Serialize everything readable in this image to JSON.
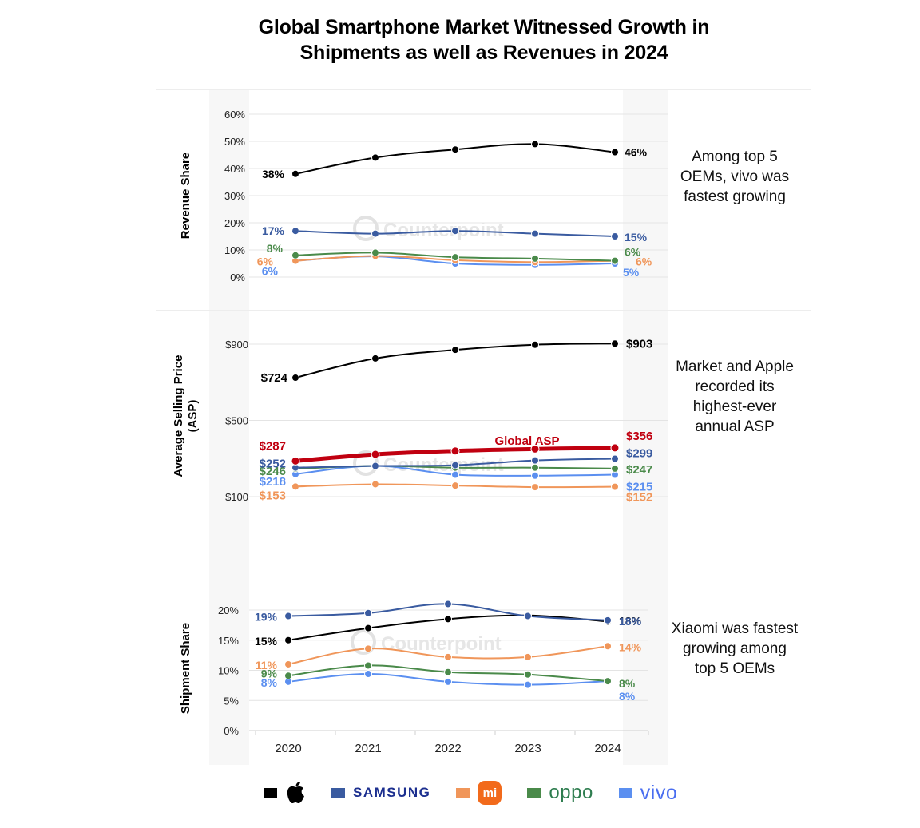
{
  "title_line1": "Global Smartphone Market Witnessed Growth in",
  "title_line2": "Shipments as well as Revenues in 2024",
  "watermark": "Counterpoint",
  "colors": {
    "apple": "#000000",
    "samsung": "#3a5ba0",
    "xiaomi": "#f0965a",
    "oppo": "#4a8a4a",
    "vivo": "#5b8ff0",
    "global": "#c00010"
  },
  "legend": [
    {
      "key": "apple",
      "label": "Apple"
    },
    {
      "key": "samsung",
      "label": "SAMSUNG"
    },
    {
      "key": "xiaomi",
      "label": "mi"
    },
    {
      "key": "oppo",
      "label": "oppo"
    },
    {
      "key": "vivo",
      "label": "vivo"
    }
  ],
  "notes": {
    "revenue": "Among top 5 OEMs, vivo was fastest growing",
    "asp": "Market and Apple recorded its highest-ever annual ASP",
    "shipment": "Xiaomi was fastest growing among top 5 OEMs"
  },
  "chart_data": [
    {
      "type": "line",
      "id": "revenue",
      "ylabel": "Revenue Share",
      "x": [
        "2020",
        "2021",
        "2022",
        "2023",
        "2024"
      ],
      "ylim": [
        0,
        60
      ],
      "yticks": [
        "0%",
        "10%",
        "20%",
        "30%",
        "40%",
        "50%",
        "60%"
      ],
      "ytick_values": [
        0,
        10,
        20,
        30,
        40,
        50,
        60
      ],
      "grid": true,
      "series": [
        {
          "name": "Apple",
          "key": "apple",
          "values": [
            38,
            44,
            47,
            49,
            46
          ],
          "start_label": "38%",
          "end_label": "46%"
        },
        {
          "name": "Samsung",
          "key": "samsung",
          "values": [
            17,
            16,
            17,
            16,
            15
          ],
          "start_label": "17%",
          "end_label": "15%"
        },
        {
          "name": "OPPO",
          "key": "oppo",
          "values": [
            8,
            9,
            7.3,
            6.8,
            6
          ],
          "start_label": "8%",
          "end_label": "6%"
        },
        {
          "name": "Xiaomi",
          "key": "xiaomi",
          "values": [
            6,
            7.8,
            6.2,
            5.5,
            6
          ],
          "start_label": "6%",
          "end_label": "6%"
        },
        {
          "name": "vivo",
          "key": "vivo",
          "values": [
            6,
            7.6,
            5,
            4.5,
            5
          ],
          "start_label": "6%",
          "end_label": "5%"
        }
      ]
    },
    {
      "type": "line",
      "id": "asp",
      "ylabel": "Average Selling Price (ASP)",
      "x": [
        "2020",
        "2021",
        "2022",
        "2023",
        "2024"
      ],
      "ylim": [
        100,
        900
      ],
      "yticks": [
        "$100",
        "$500",
        "$900"
      ],
      "ytick_values": [
        100,
        500,
        900
      ],
      "grid": true,
      "annotation": "Global ASP",
      "series": [
        {
          "name": "Apple",
          "key": "apple",
          "values": [
            724,
            825,
            870,
            897,
            903
          ],
          "start_label": "$724",
          "end_label": "$903"
        },
        {
          "name": "Global ASP",
          "key": "global",
          "values": [
            287,
            322,
            340,
            350,
            356
          ],
          "start_label": "$287",
          "end_label": "$356"
        },
        {
          "name": "Samsung",
          "key": "samsung",
          "values": [
            252,
            261,
            265,
            290,
            299
          ],
          "start_label": "$252",
          "end_label": "$299"
        },
        {
          "name": "OPPO",
          "key": "oppo",
          "values": [
            246,
            261,
            252,
            252,
            247
          ],
          "start_label": "$246",
          "end_label": "$247"
        },
        {
          "name": "vivo",
          "key": "vivo",
          "values": [
            218,
            261,
            215,
            210,
            215
          ],
          "start_label": "$218",
          "end_label": "$215"
        },
        {
          "name": "Xiaomi",
          "key": "xiaomi",
          "values": [
            153,
            165,
            158,
            150,
            152
          ],
          "start_label": "$153",
          "end_label": "$152"
        }
      ]
    },
    {
      "type": "line",
      "id": "shipment",
      "ylabel": "Shipment Share",
      "x": [
        "2020",
        "2021",
        "2022",
        "2023",
        "2024"
      ],
      "ylim": [
        0,
        20
      ],
      "yticks": [
        "0%",
        "5%",
        "10%",
        "15%",
        "20%"
      ],
      "ytick_values": [
        0,
        5,
        10,
        15,
        20
      ],
      "grid": true,
      "series": [
        {
          "name": "Samsung",
          "key": "samsung",
          "values": [
            19,
            19.5,
            21,
            19,
            18.3
          ],
          "start_label": "19%",
          "end_label": "18%"
        },
        {
          "name": "Apple",
          "key": "apple",
          "values": [
            15,
            17,
            18.5,
            19.1,
            18.1
          ],
          "start_label": "15%",
          "end_label": "18%"
        },
        {
          "name": "Xiaomi",
          "key": "xiaomi",
          "values": [
            11,
            13.6,
            12.2,
            12.2,
            14
          ],
          "start_label": "11%",
          "end_label": "14%"
        },
        {
          "name": "OPPO",
          "key": "oppo",
          "values": [
            9.1,
            10.8,
            9.7,
            9.3,
            8.2
          ],
          "start_label": "9%",
          "end_label": "8%"
        },
        {
          "name": "vivo",
          "key": "vivo",
          "values": [
            8.1,
            9.4,
            8.1,
            7.6,
            8.2
          ],
          "start_label": "8%",
          "end_label": "8%"
        }
      ]
    }
  ]
}
